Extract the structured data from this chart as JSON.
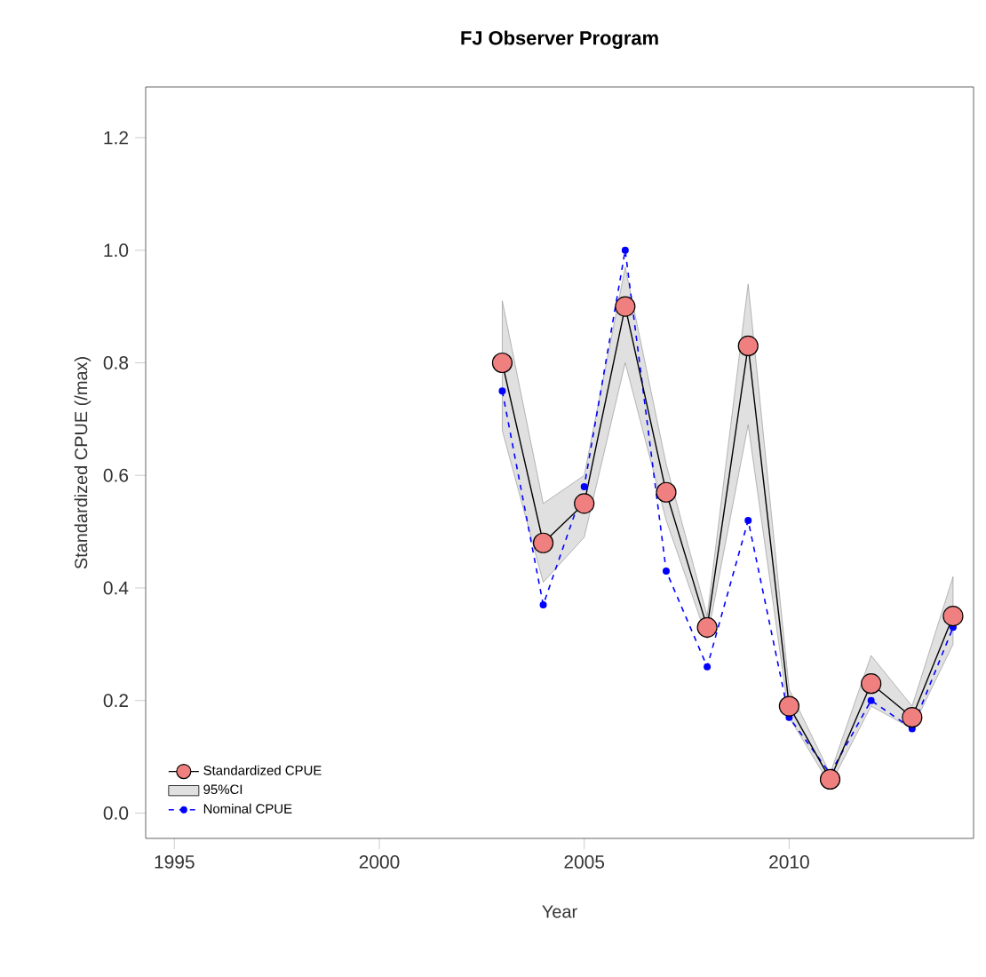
{
  "chart_data": {
    "type": "line",
    "title": "FJ Observer Program",
    "xlabel": "Year",
    "ylabel": "Standardized CPUE (/max)",
    "x": [
      2003,
      2004,
      2005,
      2006,
      2007,
      2008,
      2009,
      2010,
      2011,
      2012,
      2013,
      2014
    ],
    "series": [
      {
        "name": "Standardized CPUE",
        "type": "line",
        "color": "#f08080",
        "marker": "circle",
        "line_style": "solid",
        "values": [
          0.8,
          0.48,
          0.55,
          0.9,
          0.57,
          0.33,
          0.83,
          0.19,
          0.06,
          0.23,
          0.17,
          0.35
        ],
        "upper": [
          0.91,
          0.55,
          0.6,
          0.97,
          0.62,
          0.35,
          0.94,
          0.22,
          0.07,
          0.28,
          0.19,
          0.42
        ],
        "lower": [
          0.68,
          0.41,
          0.49,
          0.8,
          0.52,
          0.31,
          0.69,
          0.17,
          0.05,
          0.19,
          0.15,
          0.3
        ]
      },
      {
        "name": "95%CI",
        "type": "area",
        "color": "#e0e0e0",
        "values": [
          null,
          null,
          null,
          null,
          null,
          null,
          null,
          null,
          null,
          null,
          null,
          null
        ]
      },
      {
        "name": "Nominal CPUE",
        "color": "#0000ff",
        "marker": "circle",
        "line_style": "dashed",
        "values": [
          0.75,
          0.37,
          0.58,
          1.0,
          0.43,
          0.26,
          0.52,
          0.17,
          0.07,
          0.2,
          0.15,
          0.33
        ]
      }
    ],
    "xlim": [
      1994.3,
      2014.5
    ],
    "ylim": [
      -0.045,
      1.29
    ],
    "xticks": [
      1995,
      2000,
      2005,
      2010
    ],
    "yticks": [
      {
        "value": 0,
        "label": "0.0"
      },
      {
        "value": 0.2,
        "label": "0.2"
      },
      {
        "value": 0.4,
        "label": "0.4"
      },
      {
        "value": 0.6,
        "label": "0.6"
      },
      {
        "value": 0.8,
        "label": "0.8"
      },
      {
        "value": 1.0,
        "label": "1.0"
      },
      {
        "value": 1.2,
        "label": "1.2"
      }
    ],
    "grid": false,
    "legend": "bottom left"
  }
}
